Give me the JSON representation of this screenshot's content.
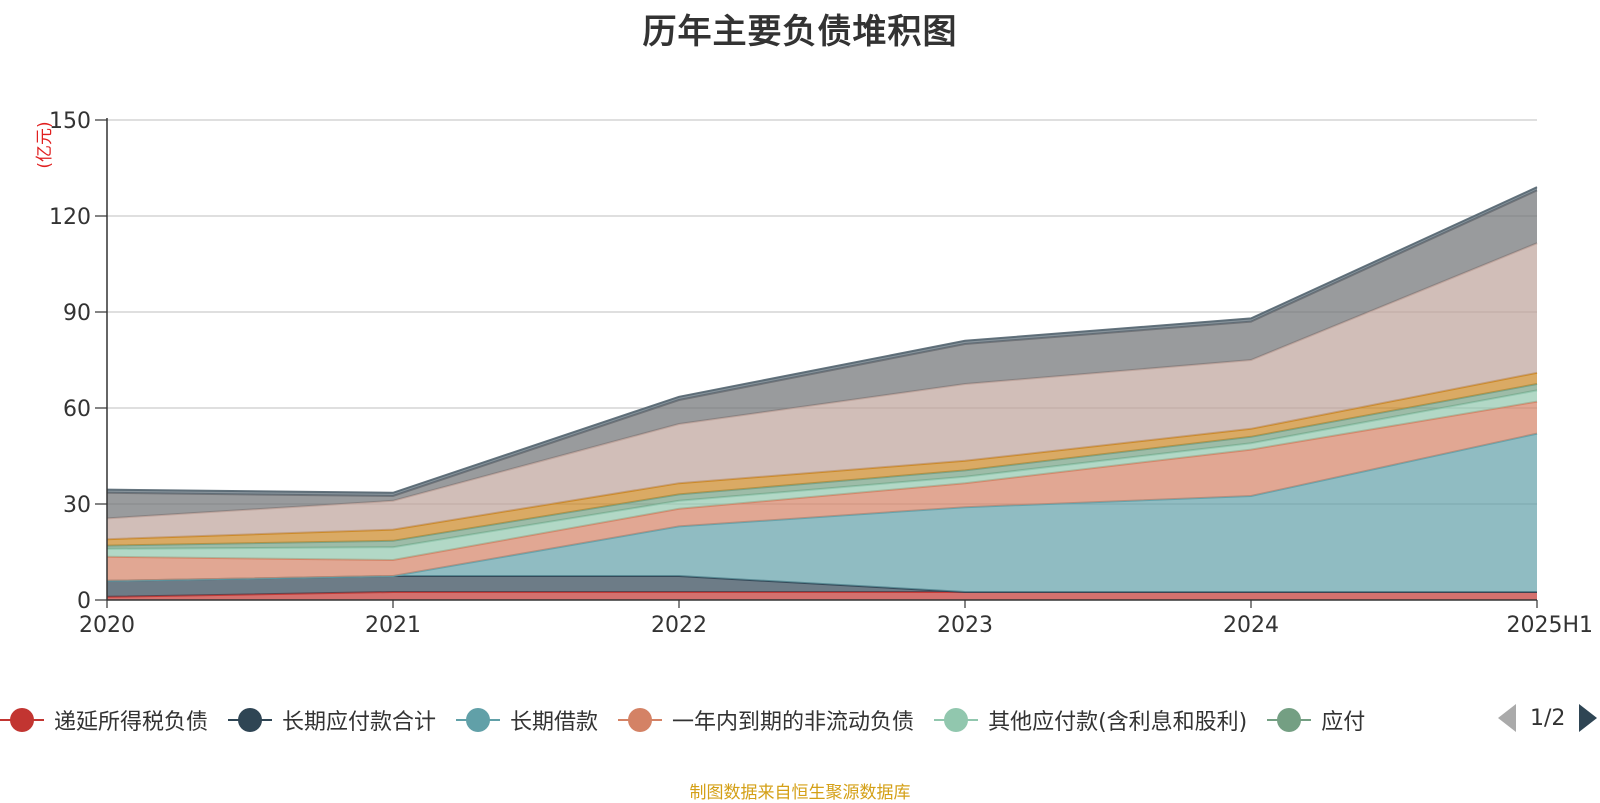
{
  "title": "历年主要负债堆积图",
  "unit_label": "(亿元)",
  "legend": {
    "items": [
      {
        "label": "递延所得税负债",
        "color": "#c23531"
      },
      {
        "label": "长期应付款合计",
        "color": "#2f4554"
      },
      {
        "label": "长期借款",
        "color": "#61a0a8"
      },
      {
        "label": "一年内到期的非流动负债",
        "color": "#d48265"
      },
      {
        "label": "其他应付款(含利息和股利)",
        "color": "#91c7ae"
      },
      {
        "label": "应付",
        "color": "#749f83"
      }
    ],
    "page": "1/2"
  },
  "footer": "制图数据来自恒生聚源数据库",
  "chart_data": {
    "type": "area",
    "stacked": true,
    "title": "历年主要负债堆积图",
    "ylabel": "(亿元)",
    "ylim": [
      0,
      150
    ],
    "yticks": [
      0,
      30,
      60,
      90,
      120,
      150
    ],
    "grid": true,
    "legend_position": "bottom",
    "categories": [
      "2020",
      "2021",
      "2022",
      "2023",
      "2024",
      "2025H1"
    ],
    "series": [
      {
        "name": "递延所得税负债",
        "color": "#c23531",
        "values": [
          1,
          2.5,
          2.5,
          2.5,
          2.5,
          2.5
        ]
      },
      {
        "name": "长期应付款合计",
        "color": "#2f4554",
        "values": [
          5,
          5,
          5,
          0,
          0,
          0
        ]
      },
      {
        "name": "长期借款",
        "color": "#61a0a8",
        "values": [
          0,
          0,
          15.5,
          26.5,
          30,
          49.5
        ]
      },
      {
        "name": "一年内到期的非流动负债",
        "color": "#d48265",
        "values": [
          7.5,
          5,
          5.5,
          7.5,
          14.5,
          10
        ]
      },
      {
        "name": "其他应付款(含利息和股利)",
        "color": "#91c7ae",
        "values": [
          2.5,
          4,
          2.5,
          2,
          2,
          3.5
        ]
      },
      {
        "name": "",
        "color": "#749f83",
        "values": [
          1,
          2,
          2,
          2,
          2,
          2
        ]
      },
      {
        "name": "",
        "color": "#ca8622",
        "values": [
          2,
          3.5,
          3.5,
          3,
          2.5,
          3.5
        ]
      },
      {
        "name": "",
        "color": "#bda29a",
        "values": [
          6.5,
          9,
          18.5,
          24,
          21.5,
          40.5
        ]
      },
      {
        "name": "",
        "color": "#6e7074",
        "values": [
          8,
          1.5,
          7.5,
          12.5,
          12,
          16.5
        ]
      },
      {
        "name": "",
        "color": "#546570",
        "values": [
          1,
          1,
          1,
          1,
          1,
          1
        ]
      }
    ]
  }
}
